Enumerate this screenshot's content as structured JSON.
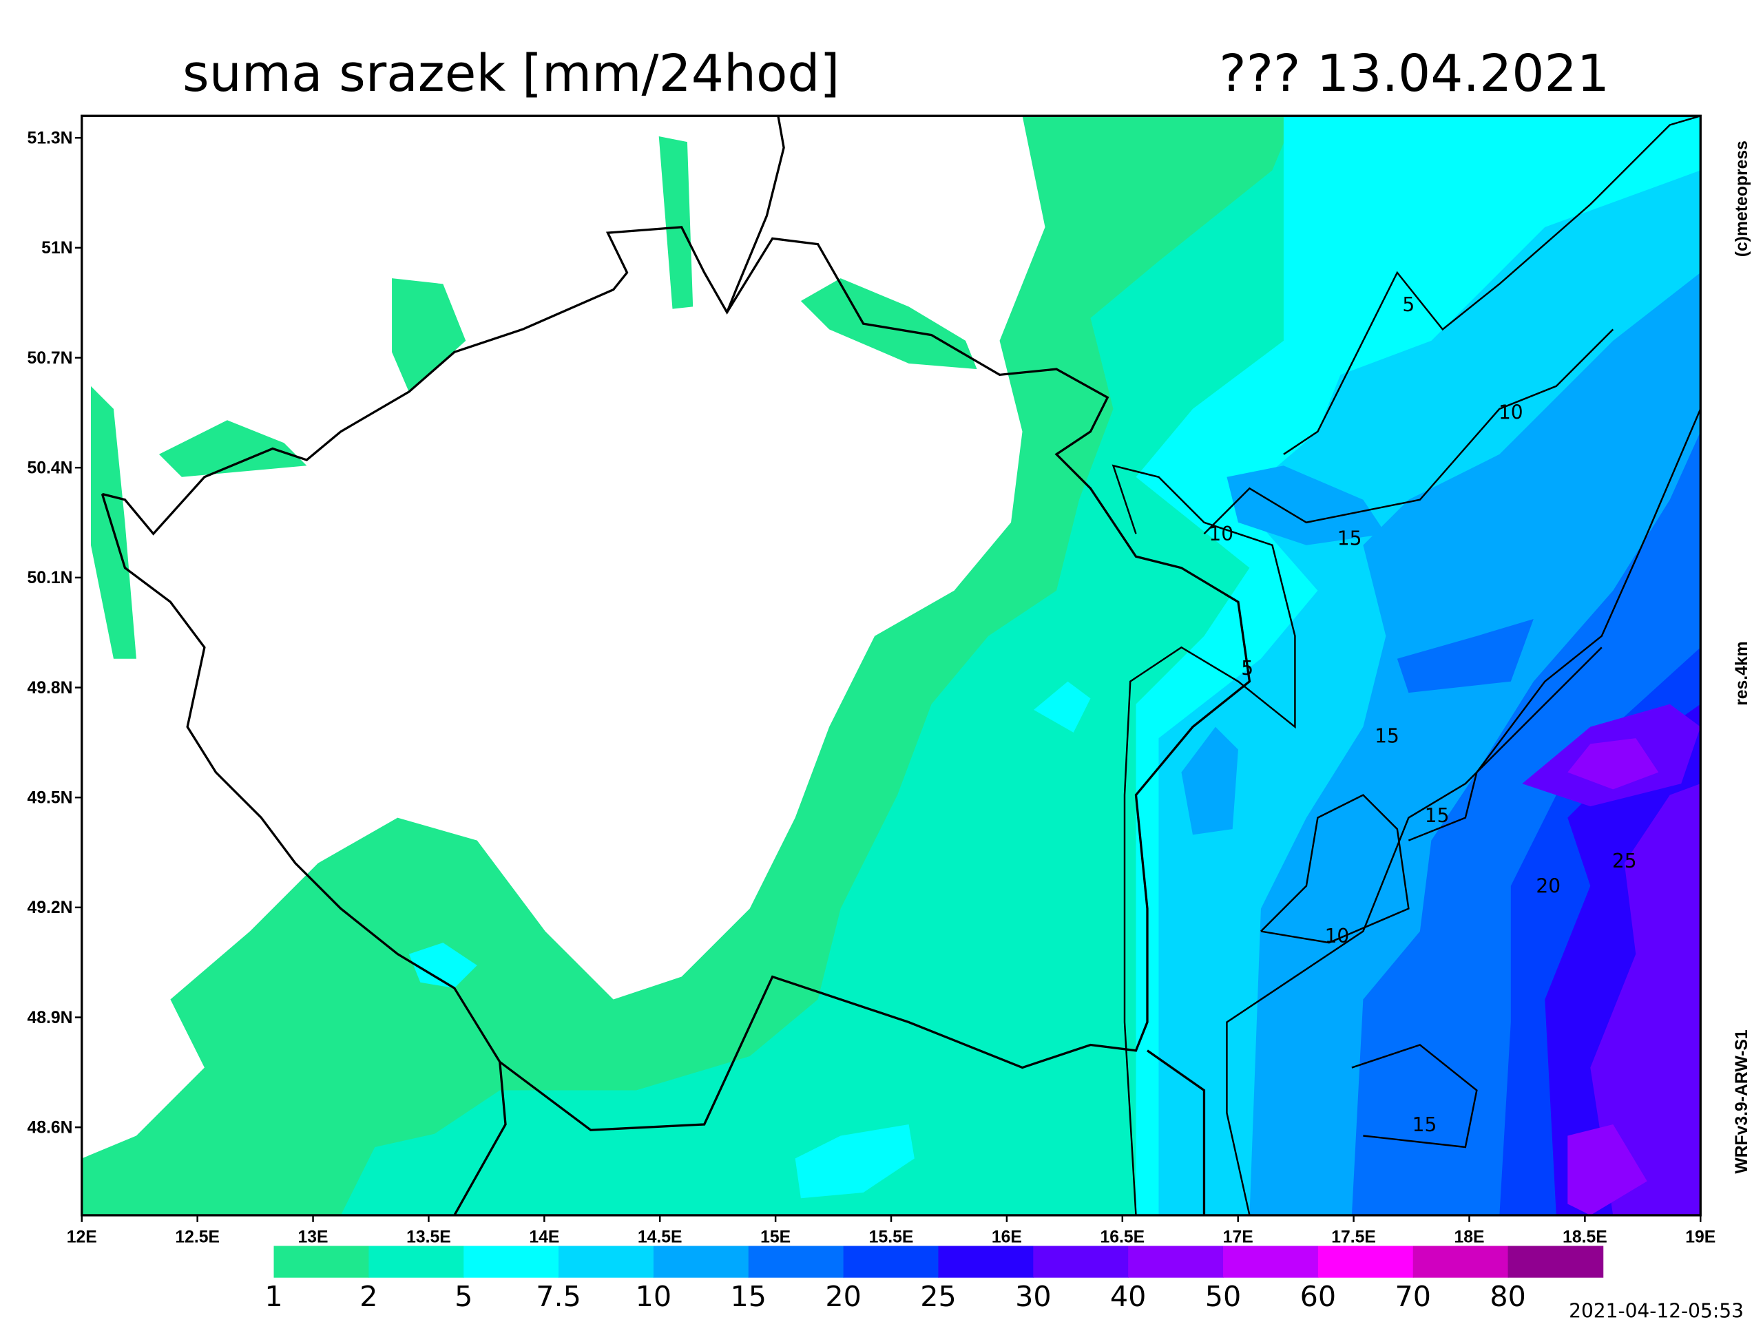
{
  "header": {
    "title": "suma srazek [mm/24hod]",
    "date": "??? 13.04.2021"
  },
  "side_labels": {
    "copyright": "(c)meteopress",
    "resolution": "res.4km",
    "model": "WRFv3.9-ARW-S1"
  },
  "timestamp": "2021-04-12-05:53",
  "map": {
    "lonlim": [
      12,
      19
    ],
    "latlim": [
      48.36,
      51.36
    ],
    "lon_ticks": [
      {
        "value": 12,
        "label": "12E"
      },
      {
        "value": 12.5,
        "label": "12.5E"
      },
      {
        "value": 13,
        "label": "13E"
      },
      {
        "value": 13.5,
        "label": "13.5E"
      },
      {
        "value": 14,
        "label": "14E"
      },
      {
        "value": 14.5,
        "label": "14.5E"
      },
      {
        "value": 15,
        "label": "15E"
      },
      {
        "value": 15.5,
        "label": "15.5E"
      },
      {
        "value": 16,
        "label": "16E"
      },
      {
        "value": 16.5,
        "label": "16.5E"
      },
      {
        "value": 17,
        "label": "17E"
      },
      {
        "value": 17.5,
        "label": "17.5E"
      },
      {
        "value": 18,
        "label": "18E"
      },
      {
        "value": 18.5,
        "label": "18.5E"
      },
      {
        "value": 19,
        "label": "19E"
      }
    ],
    "lat_ticks": [
      {
        "value": 51.3,
        "label": "51.3N"
      },
      {
        "value": 51,
        "label": "51N"
      },
      {
        "value": 50.7,
        "label": "50.7N"
      },
      {
        "value": 50.4,
        "label": "50.4N"
      },
      {
        "value": 50.1,
        "label": "50.1N"
      },
      {
        "value": 49.8,
        "label": "49.8N"
      },
      {
        "value": 49.5,
        "label": "49.5N"
      },
      {
        "value": 49.2,
        "label": "49.2N"
      },
      {
        "value": 48.9,
        "label": "48.9N"
      },
      {
        "value": 48.6,
        "label": "48.6N"
      }
    ],
    "contour_labels": [
      5,
      5,
      10,
      10,
      10,
      15,
      15,
      15,
      15,
      20,
      25
    ]
  },
  "legend": {
    "levels": [
      1,
      2,
      5,
      7.5,
      10,
      15,
      20,
      25,
      30,
      40,
      50,
      60,
      70,
      80
    ],
    "colors": [
      "#1ee88e",
      "#00f2c2",
      "#00ffff",
      "#00d8ff",
      "#00a8ff",
      "#0070ff",
      "#0040ff",
      "#2800ff",
      "#6000ff",
      "#8c00ff",
      "#c000ff",
      "#ff00ff",
      "#d000c0",
      "#900090"
    ]
  }
}
